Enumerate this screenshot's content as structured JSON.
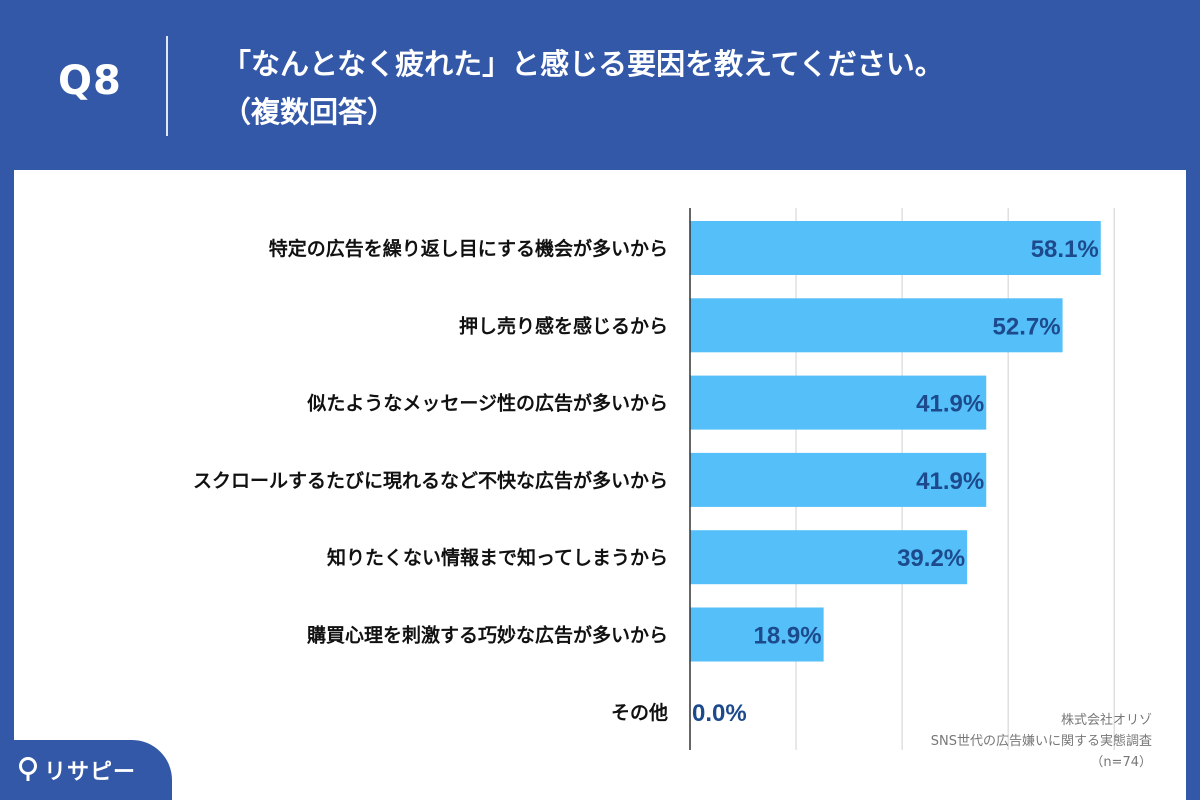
{
  "header": {
    "q_label": "Q8",
    "title_line1": "「なんとなく疲れた」と感じる要因を教えてください。",
    "title_line2": "（複数回答）"
  },
  "source": {
    "line1": "株式会社オリゾ",
    "line2": "SNS世代の広告嫌いに関する実態調査",
    "line3": "（n=74）"
  },
  "logo": {
    "text": "リサピー"
  },
  "colors": {
    "header_bg": "#3358a8",
    "bar": "#54bff8",
    "value_label": "#1d4a8c",
    "grid": "#d0d0d0"
  },
  "chart_data": {
    "type": "bar",
    "orientation": "horizontal",
    "categories": [
      "特定の広告を繰り返し目にする機会が多いから",
      "押し売り感を感じるから",
      "似たようなメッセージ性の広告が多いから",
      "スクロールするたびに現れるなど不快な広告が多いから",
      "知りたくない情報まで知ってしまうから",
      "購買心理を刺激する巧妙な広告が多いから",
      "その他"
    ],
    "values": [
      58.1,
      52.7,
      41.9,
      41.9,
      39.2,
      18.9,
      0.0
    ],
    "value_labels": [
      "58.1%",
      "52.7%",
      "41.9%",
      "41.9%",
      "39.2%",
      "18.9%",
      "0.0%"
    ],
    "unit": "%",
    "xlim": [
      0,
      60
    ],
    "grid": true,
    "legend": false,
    "title": "",
    "xlabel": "",
    "ylabel": ""
  }
}
